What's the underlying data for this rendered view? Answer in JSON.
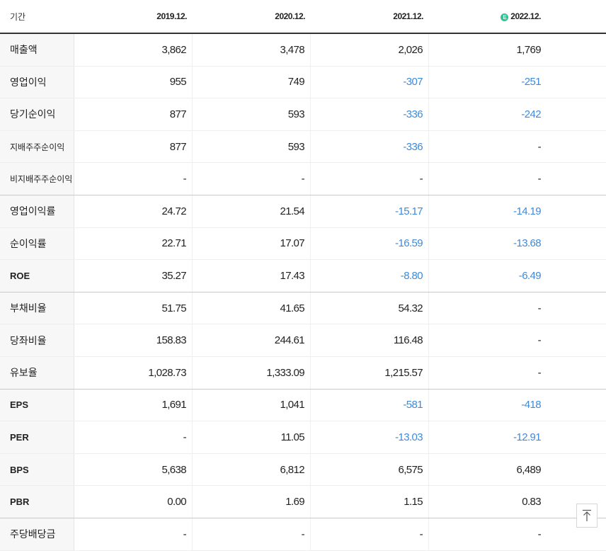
{
  "header": {
    "period_label": "기간",
    "estimate_mark": "E",
    "columns": [
      "2019.12.",
      "2020.12.",
      "2021.12.",
      "2022.12."
    ]
  },
  "rows": [
    {
      "label": "매출액",
      "values": [
        "3,862",
        "3,478",
        "2,026",
        "1,769"
      ]
    },
    {
      "label": "영업이익",
      "values": [
        "955",
        "749",
        "-307",
        "-251"
      ]
    },
    {
      "label": "당기순이익",
      "values": [
        "877",
        "593",
        "-336",
        "-242"
      ]
    },
    {
      "label": "지배주주순이익",
      "values": [
        "877",
        "593",
        "-336",
        "-"
      ]
    },
    {
      "label": "비지배주주순이익",
      "values": [
        "-",
        "-",
        "-",
        "-"
      ]
    },
    {
      "label": "영업이익률",
      "values": [
        "24.72",
        "21.54",
        "-15.17",
        "-14.19"
      ]
    },
    {
      "label": "순이익률",
      "values": [
        "22.71",
        "17.07",
        "-16.59",
        "-13.68"
      ]
    },
    {
      "label": "ROE",
      "values": [
        "35.27",
        "17.43",
        "-8.80",
        "-6.49"
      ]
    },
    {
      "label": "부채비율",
      "values": [
        "51.75",
        "41.65",
        "54.32",
        "-"
      ]
    },
    {
      "label": "당좌비율",
      "values": [
        "158.83",
        "244.61",
        "116.48",
        "-"
      ]
    },
    {
      "label": "유보율",
      "values": [
        "1,028.73",
        "1,333.09",
        "1,215.57",
        "-"
      ]
    },
    {
      "label": "EPS",
      "values": [
        "1,691",
        "1,041",
        "-581",
        "-418"
      ]
    },
    {
      "label": "PER",
      "values": [
        "-",
        "11.05",
        "-13.03",
        "-12.91"
      ]
    },
    {
      "label": "BPS",
      "values": [
        "5,638",
        "6,812",
        "6,575",
        "6,489"
      ]
    },
    {
      "label": "PBR",
      "values": [
        "0.00",
        "1.69",
        "1.15",
        "0.83"
      ]
    },
    {
      "label": "주당배당금",
      "values": [
        "-",
        "-",
        "-",
        "-"
      ]
    }
  ],
  "colors": {
    "negative": "#3f8ad9",
    "estimate": "#2ec48f"
  },
  "icons": {
    "scroll_top": "arrow-up-to-line-icon"
  }
}
